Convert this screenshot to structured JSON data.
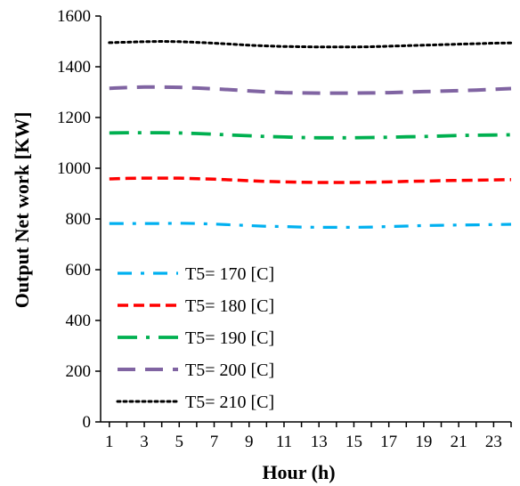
{
  "chart_data": {
    "type": "line",
    "title": "",
    "xlabel": "Hour (h)",
    "ylabel": "Output Net work [KW]",
    "xlim": [
      0.5,
      24
    ],
    "ylim": [
      0,
      1600
    ],
    "x_ticks": [
      1,
      3,
      5,
      7,
      9,
      11,
      13,
      15,
      17,
      19,
      21,
      23
    ],
    "y_ticks": [
      0,
      200,
      400,
      600,
      800,
      1000,
      1200,
      1400,
      1600
    ],
    "grid": false,
    "legend_position": "bottom-left",
    "x": [
      1,
      2,
      3,
      4,
      5,
      6,
      7,
      8,
      9,
      10,
      11,
      12,
      13,
      14,
      15,
      16,
      17,
      18,
      19,
      20,
      21,
      22,
      23,
      24
    ],
    "series": [
      {
        "name": "T5= 170 [C]",
        "color": "#00b0f0",
        "dash": "dash-dot",
        "values": [
          782,
          782,
          782,
          782,
          783,
          782,
          780,
          777,
          774,
          771,
          770,
          768,
          767,
          767,
          767,
          768,
          770,
          772,
          774,
          775,
          776,
          777,
          778,
          779
        ]
      },
      {
        "name": "T5= 180 [C]",
        "color": "#ff0000",
        "dash": "dash",
        "values": [
          958,
          960,
          961,
          961,
          961,
          959,
          957,
          954,
          951,
          948,
          946,
          945,
          944,
          944,
          944,
          945,
          946,
          948,
          949,
          951,
          952,
          953,
          954,
          955
        ]
      },
      {
        "name": "T5= 190 [C]",
        "color": "#00b050",
        "dash": "long-dash-dot",
        "values": [
          1139,
          1140,
          1140,
          1140,
          1139,
          1137,
          1134,
          1131,
          1128,
          1125,
          1123,
          1121,
          1120,
          1120,
          1120,
          1121,
          1122,
          1124,
          1125,
          1127,
          1129,
          1130,
          1131,
          1132
        ]
      },
      {
        "name": "T5= 200 [C]",
        "color": "#8064a2",
        "dash": "long-dash",
        "values": [
          1315,
          1318,
          1320,
          1320,
          1319,
          1316,
          1313,
          1309,
          1305,
          1301,
          1298,
          1297,
          1296,
          1296,
          1296,
          1297,
          1298,
          1300,
          1302,
          1304,
          1306,
          1308,
          1311,
          1314
        ]
      },
      {
        "name": "T5= 210 [C]",
        "color": "#000000",
        "dash": "dot",
        "values": [
          1495,
          1497,
          1499,
          1500,
          1499,
          1496,
          1493,
          1489,
          1485,
          1482,
          1480,
          1479,
          1478,
          1478,
          1478,
          1479,
          1481,
          1483,
          1485,
          1487,
          1489,
          1491,
          1493,
          1494
        ]
      }
    ]
  }
}
